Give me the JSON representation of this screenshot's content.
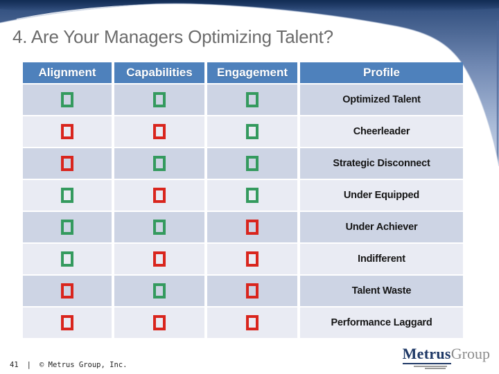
{
  "slide": {
    "title": "4. Are Your Managers Optimizing Talent?",
    "footer": {
      "page_number": "41",
      "divider": "|",
      "copyright": "© Metrus Group, Inc."
    },
    "logo": {
      "name": "Metrus",
      "suffix": "Group"
    }
  },
  "table": {
    "headers": [
      "Alignment",
      "Capabilities",
      "Engagement",
      "Profile"
    ],
    "check_columns": [
      "alignment",
      "capabilities",
      "engagement"
    ],
    "rows": [
      {
        "profile": "Optimized Talent",
        "checks": [
          "green",
          "green",
          "green"
        ]
      },
      {
        "profile": "Cheerleader",
        "checks": [
          "red",
          "red",
          "green"
        ]
      },
      {
        "profile": "Strategic Disconnect",
        "checks": [
          "red",
          "green",
          "green"
        ]
      },
      {
        "profile": "Under Equipped",
        "checks": [
          "green",
          "red",
          "green"
        ]
      },
      {
        "profile": "Under Achiever",
        "checks": [
          "green",
          "green",
          "red"
        ]
      },
      {
        "profile": "Indifferent",
        "checks": [
          "green",
          "red",
          "red"
        ]
      },
      {
        "profile": "Talent Waste",
        "checks": [
          "red",
          "green",
          "red"
        ]
      },
      {
        "profile": "Performance Laggard",
        "checks": [
          "red",
          "red",
          "red"
        ]
      }
    ]
  },
  "colors": {
    "header_bg": "#4E81BC",
    "check_green": "#349A5E",
    "check_red": "#D9251D",
    "row_band_dark": "#CDD4E4",
    "row_band_light": "#E9EBF3",
    "title_gray": "#6B6B6B",
    "logo_navy": "#1E3866",
    "logo_gray": "#8C8C8C"
  }
}
